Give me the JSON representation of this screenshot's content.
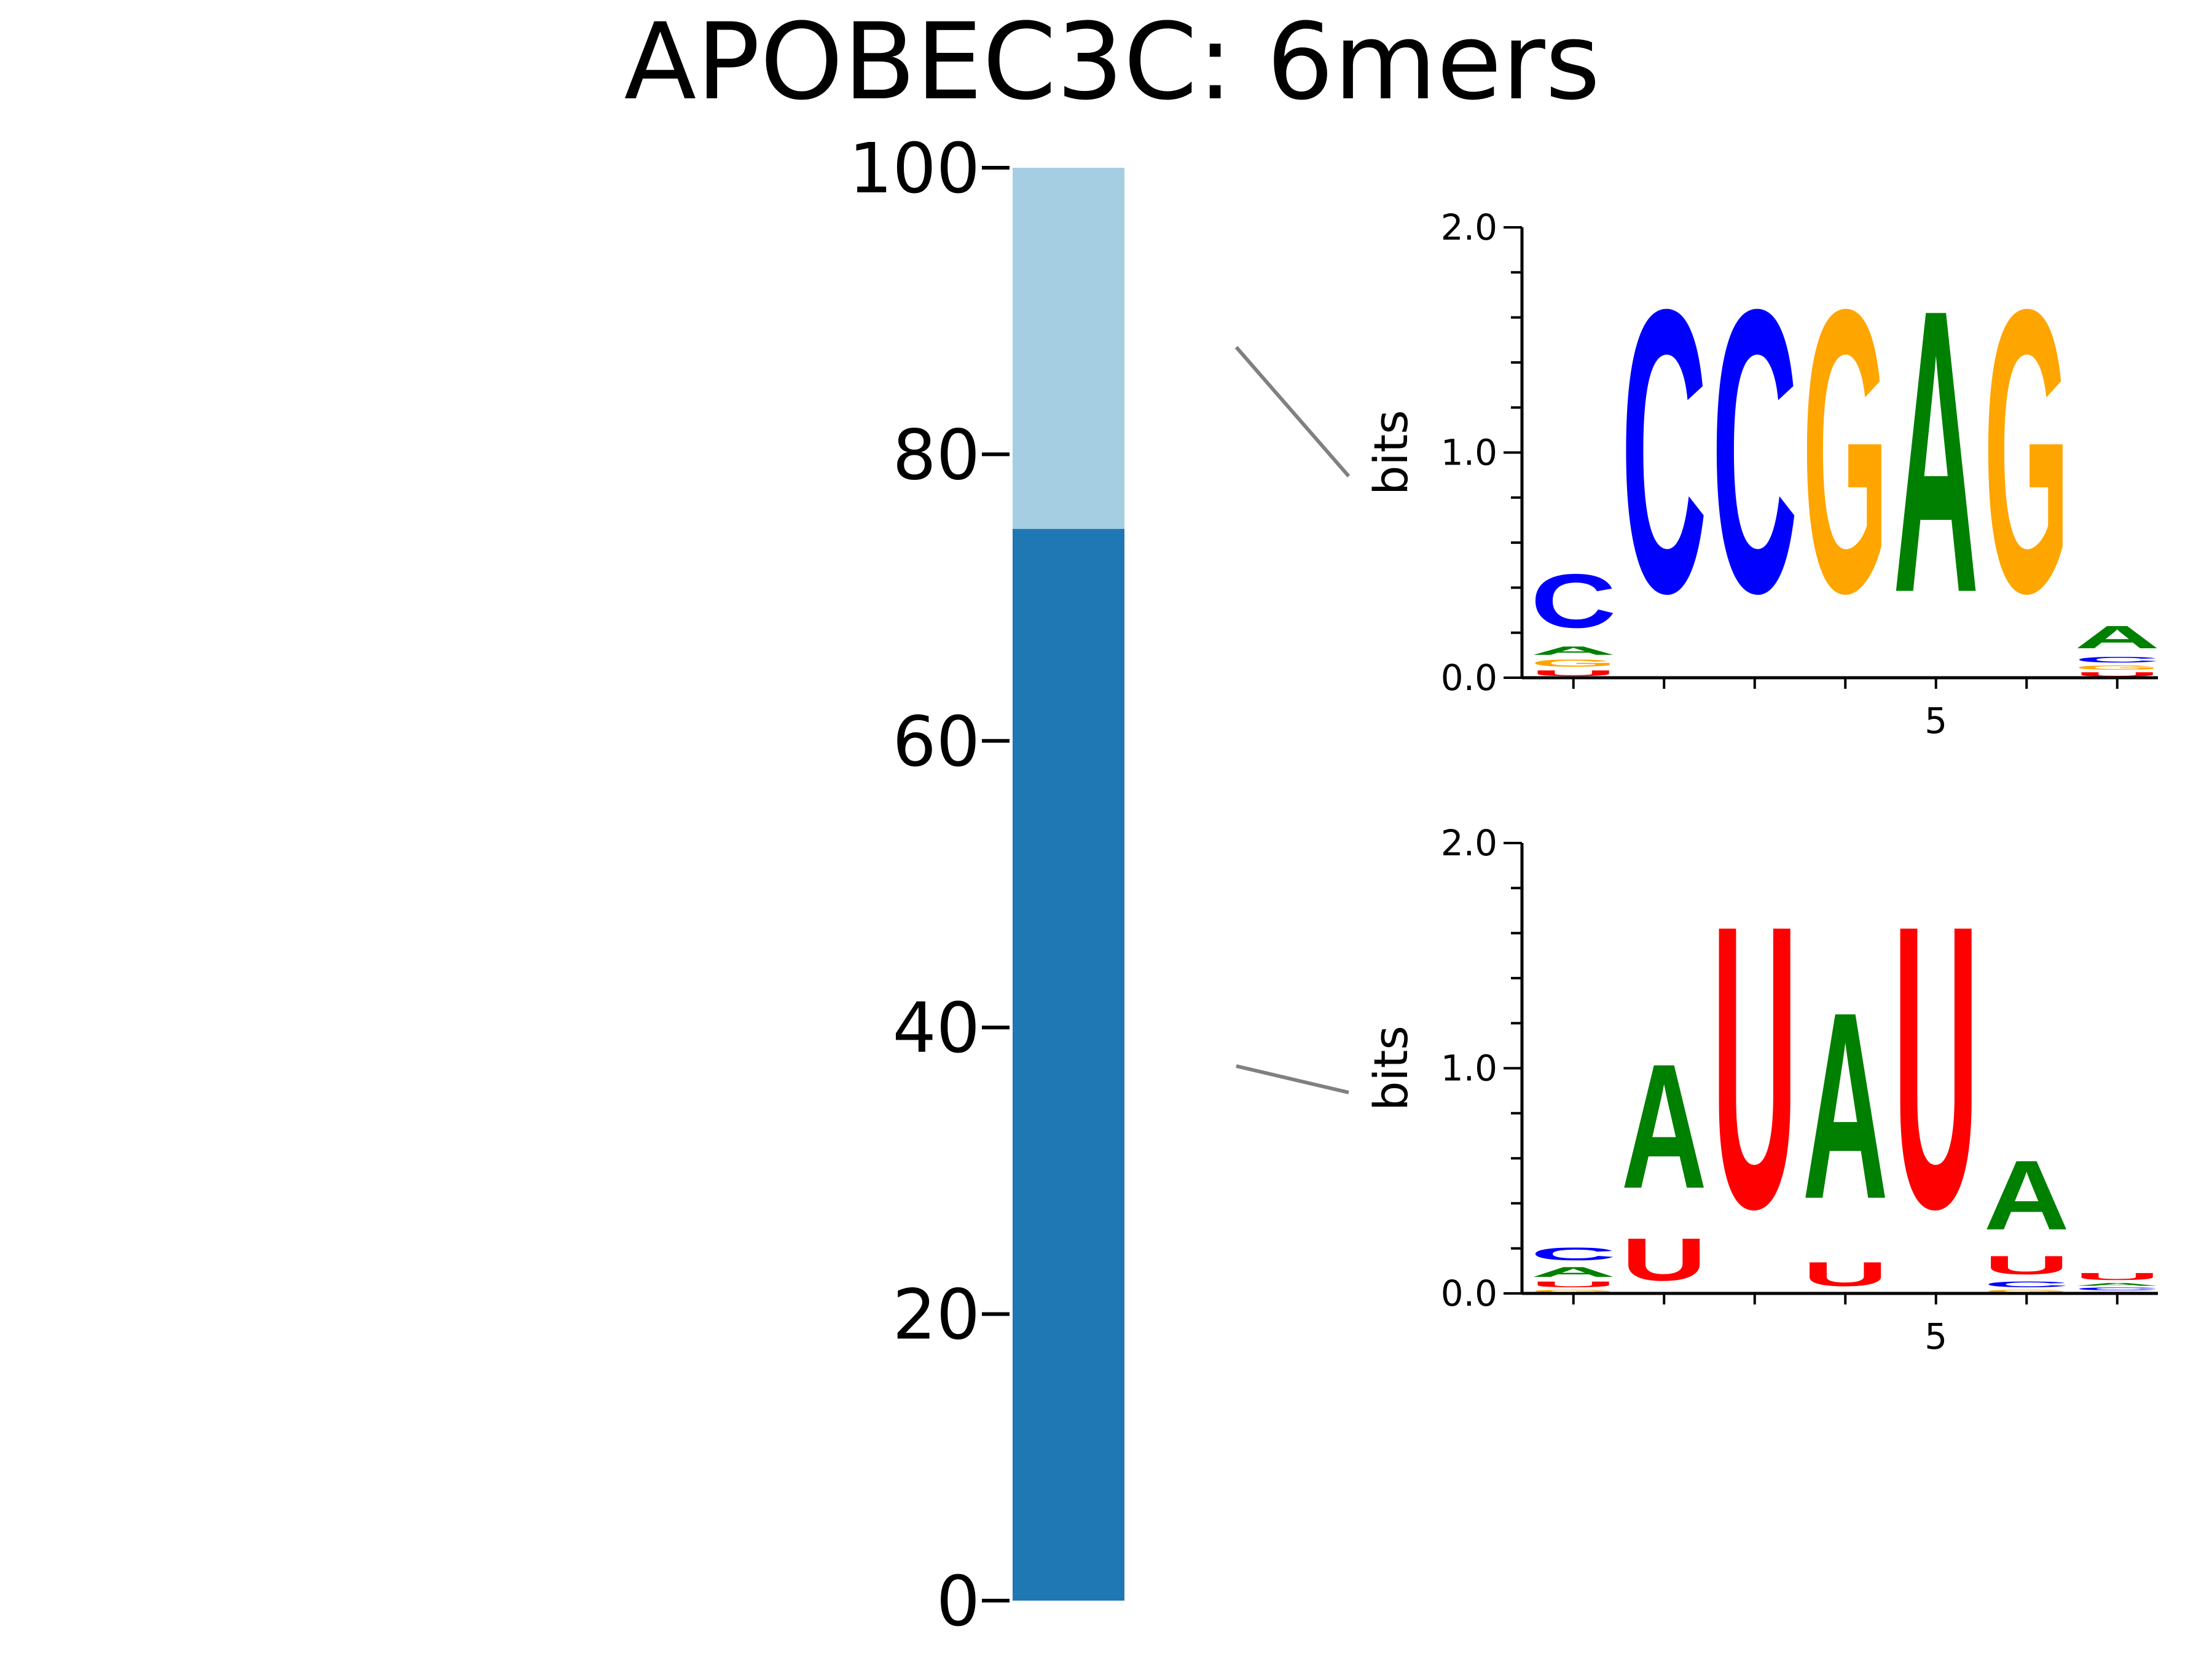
{
  "chart_data": {
    "type": "bar",
    "title": "APOBEC3C: 6mers",
    "ylim": [
      0,
      100
    ],
    "yticks": [
      "0",
      "20",
      "40",
      "60",
      "80",
      "100"
    ],
    "stacked_segments": [
      {
        "value": 74.8,
        "color": "#1f77b4"
      },
      {
        "value": 25.2,
        "color": "#a6cee3"
      }
    ],
    "connector_color": "#808080",
    "logos": [
      {
        "ylabel": "bits",
        "ytick_labels": [
          "0.0",
          "1.0",
          "2.0"
        ],
        "xtick_label": "5",
        "ymax": 2.0,
        "positions": [
          [
            {
              "l": "U",
              "h": 0.04
            },
            {
              "l": "G",
              "h": 0.05
            },
            {
              "l": "A",
              "h": 0.06
            },
            {
              "l": "C",
              "h": 0.38
            }
          ],
          [
            {
              "l": "C",
              "h": 2.0
            }
          ],
          [
            {
              "l": "C",
              "h": 2.0
            }
          ],
          [
            {
              "l": "G",
              "h": 2.0
            }
          ],
          [
            {
              "l": "A",
              "h": 2.0
            }
          ],
          [
            {
              "l": "G",
              "h": 2.0
            }
          ],
          [
            {
              "l": "U",
              "h": 0.03
            },
            {
              "l": "G",
              "h": 0.03
            },
            {
              "l": "C",
              "h": 0.04
            },
            {
              "l": "A",
              "h": 0.16
            }
          ]
        ]
      },
      {
        "ylabel": "bits",
        "ytick_labels": [
          "0.0",
          "1.0",
          "2.0"
        ],
        "xtick_label": "5",
        "ymax": 2.0,
        "positions": [
          [
            {
              "l": "G",
              "h": 0.02
            },
            {
              "l": "U",
              "h": 0.04
            },
            {
              "l": "A",
              "h": 0.07
            },
            {
              "l": "C",
              "h": 0.09
            }
          ],
          [
            {
              "l": "U",
              "h": 0.3
            },
            {
              "l": "A",
              "h": 0.88
            }
          ],
          [
            {
              "l": "U",
              "h": 2.0
            }
          ],
          [
            {
              "l": "U",
              "h": 0.17
            },
            {
              "l": "A",
              "h": 1.32
            }
          ],
          [
            {
              "l": "U",
              "h": 2.0
            }
          ],
          [
            {
              "l": "G",
              "h": 0.02
            },
            {
              "l": "C",
              "h": 0.04
            },
            {
              "l": "U",
              "h": 0.13
            },
            {
              "l": "A",
              "h": 0.49
            }
          ],
          [
            {
              "l": "G",
              "h": 0.01
            },
            {
              "l": "C",
              "h": 0.02
            },
            {
              "l": "A",
              "h": 0.02
            },
            {
              "l": "U",
              "h": 0.05
            }
          ]
        ]
      }
    ],
    "letter_colors": {
      "A": "#008000",
      "C": "#0000ff",
      "G": "#ffa500",
      "U": "#ff0000"
    }
  }
}
